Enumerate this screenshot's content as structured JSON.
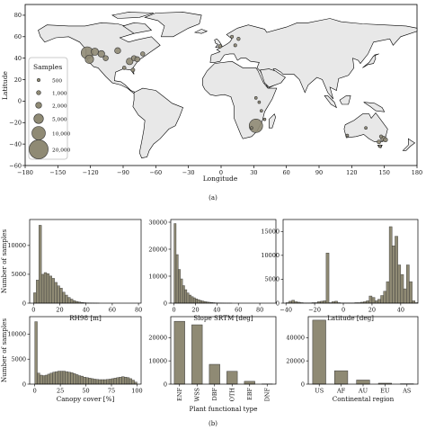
{
  "colors": {
    "bar": "#8f8a74",
    "bar_edge": "#333333",
    "land": "#e8e8e8",
    "coast": "#000000",
    "bubble": "#8f8a74"
  },
  "caption_a": "(a)",
  "caption_b": "(b)",
  "chart_data": [
    {
      "type": "scatter",
      "subtype": "bubble-map",
      "xlabel": "Longitude",
      "ylabel": "Latitude",
      "xlim": [
        -180,
        180
      ],
      "ylim": [
        -60,
        90
      ],
      "xticks": [
        "−180",
        "−150",
        "−120",
        "−90",
        "−60",
        "−30",
        "0",
        "30",
        "60",
        "90",
        "120",
        "150",
        "180"
      ],
      "yticks": [
        "−60",
        "−40",
        "−20",
        "0",
        "20",
        "40",
        "60",
        "80"
      ],
      "legend_title": "Samples",
      "legend": [
        "500",
        "1,000",
        "2,000",
        "5,000",
        "10,000",
        "20,000"
      ],
      "legend_values": [
        500,
        1000,
        2000,
        5000,
        10000,
        20000
      ],
      "legend_placement": "lower-left",
      "points": [
        {
          "lon": -123,
          "lat": 45,
          "samples": 8000
        },
        {
          "lon": -121,
          "lat": 39,
          "samples": 4000
        },
        {
          "lon": -116,
          "lat": 46,
          "samples": 3000
        },
        {
          "lon": -110,
          "lat": 44,
          "samples": 2500
        },
        {
          "lon": -106,
          "lat": 40,
          "samples": 1500
        },
        {
          "lon": -95,
          "lat": 47,
          "samples": 2000
        },
        {
          "lon": -84,
          "lat": 37,
          "samples": 2500
        },
        {
          "lon": -80,
          "lat": 40,
          "samples": 1500
        },
        {
          "lon": -77,
          "lat": 39,
          "samples": 1500
        },
        {
          "lon": -72,
          "lat": 44,
          "samples": 1000
        },
        {
          "lon": -81,
          "lat": 29,
          "samples": 800
        },
        {
          "lon": -89,
          "lat": 31,
          "samples": 700
        },
        {
          "lon": 10,
          "lat": 60,
          "samples": 500
        },
        {
          "lon": 16,
          "lat": 58,
          "samples": 600
        },
        {
          "lon": 13,
          "lat": 52,
          "samples": 500
        },
        {
          "lon": -1,
          "lat": 51,
          "samples": 700
        },
        {
          "lon": 32,
          "lat": 3,
          "samples": 300
        },
        {
          "lon": 35,
          "lat": -1,
          "samples": 400
        },
        {
          "lon": 37,
          "lat": -9,
          "samples": 250
        },
        {
          "lon": 40,
          "lat": -17,
          "samples": 250
        },
        {
          "lon": 32,
          "lat": -23,
          "samples": 10000
        },
        {
          "lon": 28,
          "lat": -25,
          "samples": 300
        },
        {
          "lon": 133,
          "lat": -25,
          "samples": 400
        },
        {
          "lon": 147,
          "lat": -33,
          "samples": 600
        },
        {
          "lon": 149,
          "lat": -35,
          "samples": 1500
        },
        {
          "lon": 151,
          "lat": -36,
          "samples": 1000
        },
        {
          "lon": 145,
          "lat": -38,
          "samples": 800
        },
        {
          "lon": 116,
          "lat": -32,
          "samples": 400
        },
        {
          "lon": 146,
          "lat": -42,
          "samples": 400
        }
      ]
    },
    {
      "type": "bar",
      "xlabel": "RH98 [m]",
      "ylabel": "Number of samples",
      "xlim": [
        -3,
        82
      ],
      "ylim": [
        0,
        14500
      ],
      "xticks": [
        "0",
        "20",
        "40",
        "60",
        "80"
      ],
      "yticks": [
        "0",
        "5000",
        "10000"
      ],
      "bin_start": 0,
      "bin_width": 2,
      "values": [
        1800,
        4000,
        13500,
        5000,
        5300,
        5100,
        4700,
        4300,
        3600,
        3000,
        2600,
        1900,
        1400,
        1000,
        700,
        450,
        300,
        200,
        120,
        80,
        50,
        30,
        20,
        10,
        5,
        0,
        0,
        0,
        0,
        0,
        0,
        0,
        0,
        0,
        0,
        0,
        0,
        0,
        0,
        0
      ]
    },
    {
      "type": "bar",
      "xlabel": "Slope SRTM [deg]",
      "ylabel": "",
      "xlim": [
        -3,
        95
      ],
      "ylim": [
        0,
        31000
      ],
      "xticks": [
        "0",
        "20",
        "40",
        "60",
        "80"
      ],
      "yticks": [
        "0",
        "10000",
        "20000",
        "30000"
      ],
      "bin_start": 0,
      "bin_width": 2,
      "values": [
        29500,
        18000,
        12500,
        9000,
        6500,
        5000,
        3800,
        3000,
        2400,
        2000,
        1600,
        1300,
        1000,
        800,
        600,
        450,
        350,
        250,
        180,
        120,
        80,
        60,
        40,
        25,
        15,
        10,
        5,
        0,
        0,
        0,
        0,
        0,
        0,
        0,
        0,
        0,
        0,
        0,
        0,
        0,
        0,
        0,
        0,
        0,
        0
      ]
    },
    {
      "type": "bar",
      "xlabel": "Latitude [deg]",
      "ylabel": "",
      "xlim": [
        -42,
        52
      ],
      "ylim": [
        0,
        17500
      ],
      "xticks": [
        "−40",
        "−20",
        "0",
        "20",
        "40"
      ],
      "yticks": [
        "0",
        "5000",
        "10000",
        "15000"
      ],
      "bin_start": -40,
      "bin_width": 2,
      "values": [
        100,
        400,
        600,
        300,
        200,
        100,
        50,
        50,
        50,
        100,
        100,
        300,
        400,
        500,
        10500,
        100,
        300,
        400,
        100,
        50,
        50,
        50,
        50,
        50,
        100,
        100,
        200,
        300,
        500,
        1500,
        1200,
        500,
        800,
        1600,
        2500,
        4500,
        16000,
        12000,
        14000,
        8000,
        6000,
        3000,
        8000,
        4500,
        500,
        100
      ]
    },
    {
      "type": "bar",
      "xlabel": "Canopy cover [%]",
      "ylabel": "Number of samples",
      "xlim": [
        -5,
        104
      ],
      "ylim": [
        0,
        13500
      ],
      "xticks": [
        "0",
        "25",
        "50",
        "75",
        "100"
      ],
      "yticks": [
        "0",
        "5000",
        "10000"
      ],
      "bin_start": 0,
      "bin_width": 2.5,
      "values": [
        12500,
        2200,
        1800,
        1700,
        1800,
        2000,
        2200,
        2400,
        2500,
        2600,
        2600,
        2600,
        2500,
        2400,
        2300,
        2100,
        1900,
        1700,
        1600,
        1400,
        1300,
        1200,
        1100,
        1000,
        950,
        900,
        900,
        900,
        950,
        1000,
        1100,
        1200,
        1300,
        1400,
        1500,
        1400,
        1300,
        1100,
        800,
        400
      ]
    },
    {
      "type": "bar",
      "xlabel": "Plant functional type",
      "ylabel": "",
      "ylim": [
        0,
        29000
      ],
      "yticks": [
        "0",
        "10000",
        "20000"
      ],
      "categories": [
        "ENF",
        "WSS",
        "DBF",
        "OTH",
        "EBF",
        "DNF"
      ],
      "values": [
        27000,
        25500,
        8500,
        5500,
        1200,
        100
      ]
    },
    {
      "type": "bar",
      "xlabel": "Continental region",
      "ylabel": "",
      "ylim": [
        0,
        58000
      ],
      "yticks": [
        "0",
        "20000",
        "40000"
      ],
      "categories": [
        "US",
        "AF",
        "AU",
        "EU",
        "AS"
      ],
      "values": [
        55000,
        11500,
        3500,
        800,
        300
      ]
    }
  ]
}
